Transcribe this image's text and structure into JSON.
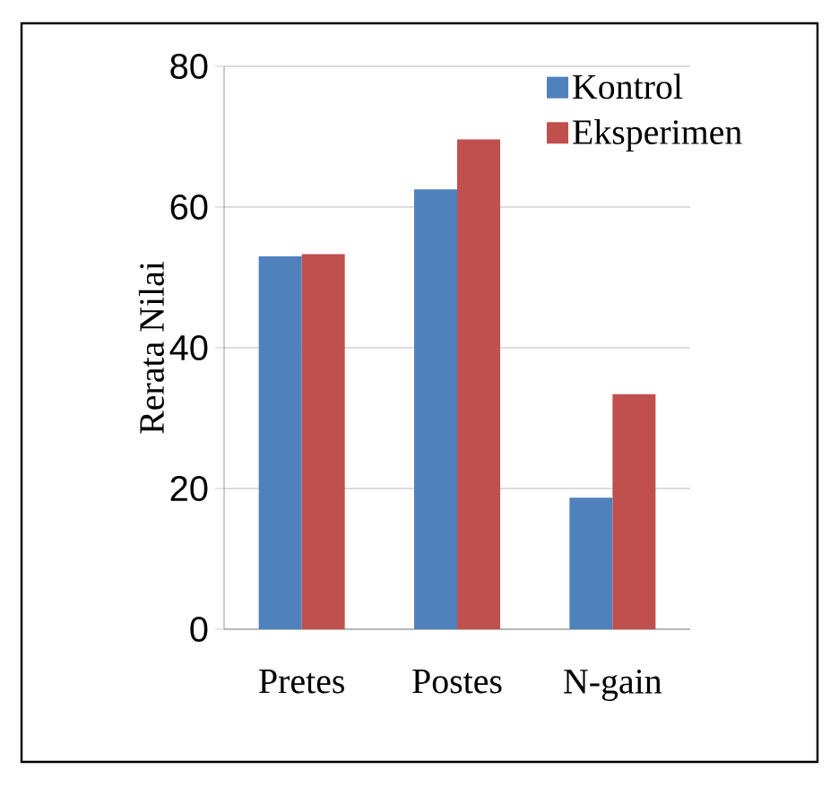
{
  "chart_data": {
    "type": "bar",
    "ylabel": "Rerata Nilai",
    "categories": [
      "Pretes",
      "Postes",
      "N-gain"
    ],
    "series": [
      {
        "name": "Kontrol",
        "color": "#4f81bd",
        "values": [
          53.0,
          62.5,
          18.7
        ]
      },
      {
        "name": "Eksperimen",
        "color": "#c0504d",
        "values": [
          53.3,
          69.6,
          33.4
        ]
      }
    ],
    "ylim": [
      0,
      80
    ],
    "yticks": [
      0,
      20,
      40,
      60,
      80
    ],
    "grid": "y",
    "legend": "top right"
  }
}
